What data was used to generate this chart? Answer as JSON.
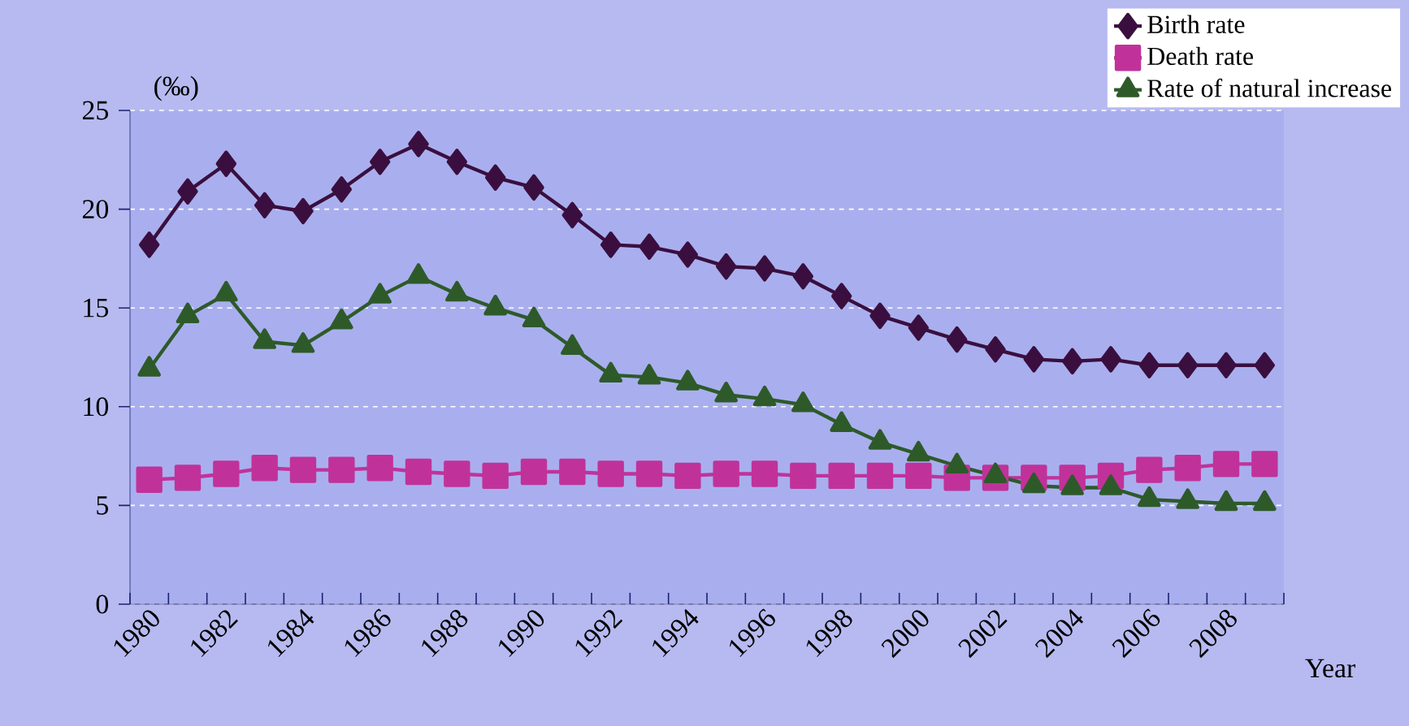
{
  "chart_data": {
    "type": "line",
    "ylabel": "(‰)",
    "xlabel": "Year",
    "categories": [
      "1980",
      null,
      "1982",
      null,
      "1984",
      null,
      "1986",
      null,
      "1988",
      null,
      "1990",
      null,
      "1992",
      null,
      "1994",
      null,
      "1996",
      null,
      "1998",
      null,
      "2000",
      null,
      "2002",
      null,
      "2004",
      null,
      "2006",
      null,
      "2008",
      null
    ],
    "ylim": [
      0,
      25
    ],
    "yticks": [
      0,
      5,
      10,
      15,
      20,
      25
    ],
    "grid": "y",
    "legend": "top right",
    "line_style": "solid",
    "series": [
      {
        "name": "Birth rate",
        "color": "#3a0f3f",
        "marker": "diamond",
        "values": [
          18.2,
          20.9,
          22.3,
          20.2,
          19.9,
          21.0,
          22.4,
          23.3,
          22.4,
          21.6,
          21.1,
          19.7,
          18.2,
          18.1,
          17.7,
          17.1,
          17.0,
          16.6,
          15.6,
          14.6,
          14.0,
          13.4,
          12.9,
          12.4,
          12.3,
          12.4,
          12.1,
          12.1,
          12.1,
          12.1
        ]
      },
      {
        "name": "Death rate",
        "color": "#c0329a",
        "marker": "square",
        "values": [
          6.3,
          6.4,
          6.6,
          6.9,
          6.8,
          6.8,
          6.9,
          6.7,
          6.6,
          6.5,
          6.7,
          6.7,
          6.6,
          6.6,
          6.5,
          6.6,
          6.6,
          6.5,
          6.5,
          6.5,
          6.5,
          6.4,
          6.4,
          6.4,
          6.4,
          6.5,
          6.8,
          6.9,
          7.1,
          7.1
        ]
      },
      {
        "name": "Rate of natural increase",
        "color": "#2e5a2a",
        "marker": "triangle",
        "values": [
          11.9,
          14.6,
          15.7,
          13.3,
          13.1,
          14.3,
          15.6,
          16.6,
          15.7,
          15.0,
          14.4,
          13.0,
          11.6,
          11.5,
          11.2,
          10.6,
          10.4,
          10.1,
          9.1,
          8.2,
          7.6,
          7.0,
          6.5,
          6.0,
          5.9,
          5.9,
          5.3,
          5.2,
          5.1,
          5.1
        ]
      }
    ]
  }
}
